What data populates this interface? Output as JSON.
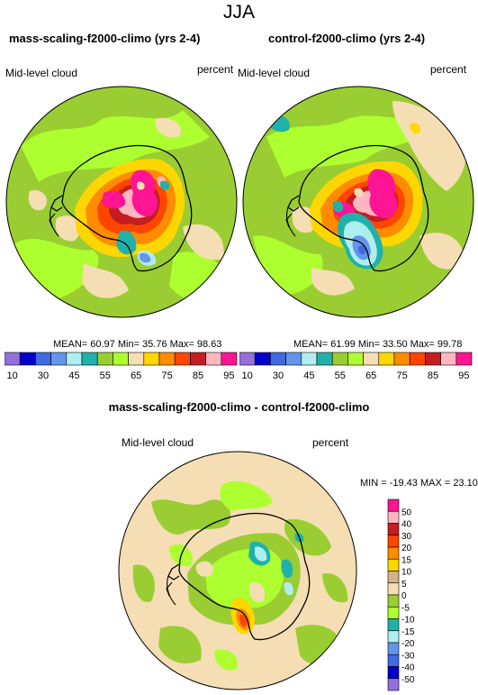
{
  "figure": {
    "title": "JJA",
    "colors": {
      "pos50": "#ff1493",
      "pos40": "#ffb6c1",
      "pos30": "#c41e23",
      "pos20": "#ff4500",
      "pos15": "#ff8c00",
      "pos10": "#ffd700",
      "pos5": "#d2b48c",
      "zero": "#f5deb3",
      "neg5": "#9acd32",
      "neg10": "#adff2f",
      "neg15": "#20b2aa",
      "neg20": "#afeeee",
      "neg30": "#6495ed",
      "neg40": "#4169e1",
      "neg50": "#0000cd",
      "negmax": "#9370db",
      "ocean_base": "#9acd32",
      "ocean_light": "#adff2f",
      "tan": "#f5deb3",
      "coast": "#000000"
    }
  },
  "panel_left": {
    "title": "mass-scaling-f2000-climo (yrs 2-4)",
    "variable": "Mid-level cloud",
    "units": "percent",
    "stats_text": "MEAN= 60.97  Min= 35.76  Max= 98.63"
  },
  "panel_right": {
    "title": "control-f2000-climo (yrs 2-4)",
    "variable": "Mid-level cloud",
    "units": "percent",
    "stats_text": "MEAN= 61.99  Min= 33.50  Max= 99.78"
  },
  "colorbar_top": {
    "labels": [
      "10",
      "30",
      "45",
      "55",
      "65",
      "75",
      "85",
      "95"
    ],
    "colors": [
      "#9370db",
      "#0000cd",
      "#4169e1",
      "#6495ed",
      "#afeeee",
      "#20b2aa",
      "#9acd32",
      "#adff2f",
      "#f5deb3",
      "#ffd700",
      "#ff8c00",
      "#ff4500",
      "#c41e23",
      "#ffb6c1",
      "#ff1493"
    ]
  },
  "panel_diff": {
    "title": "mass-scaling-f2000-climo - control-f2000-climo",
    "variable": "Mid-level cloud",
    "units": "percent",
    "stats_text": "MIN = -19.43 MAX =  23.10"
  },
  "colorbar_diff": {
    "labels": [
      "50",
      "40",
      "30",
      "20",
      "15",
      "10",
      "5",
      "0",
      "-5",
      "-10",
      "-15",
      "-20",
      "-30",
      "-40",
      "-50"
    ],
    "colors": [
      "#ff1493",
      "#ffb6c1",
      "#c41e23",
      "#ff4500",
      "#ff8c00",
      "#ffd700",
      "#d2b48c",
      "#f5deb3",
      "#9acd32",
      "#adff2f",
      "#20b2aa",
      "#afeeee",
      "#6495ed",
      "#4169e1",
      "#0000cd",
      "#9370db"
    ]
  }
}
